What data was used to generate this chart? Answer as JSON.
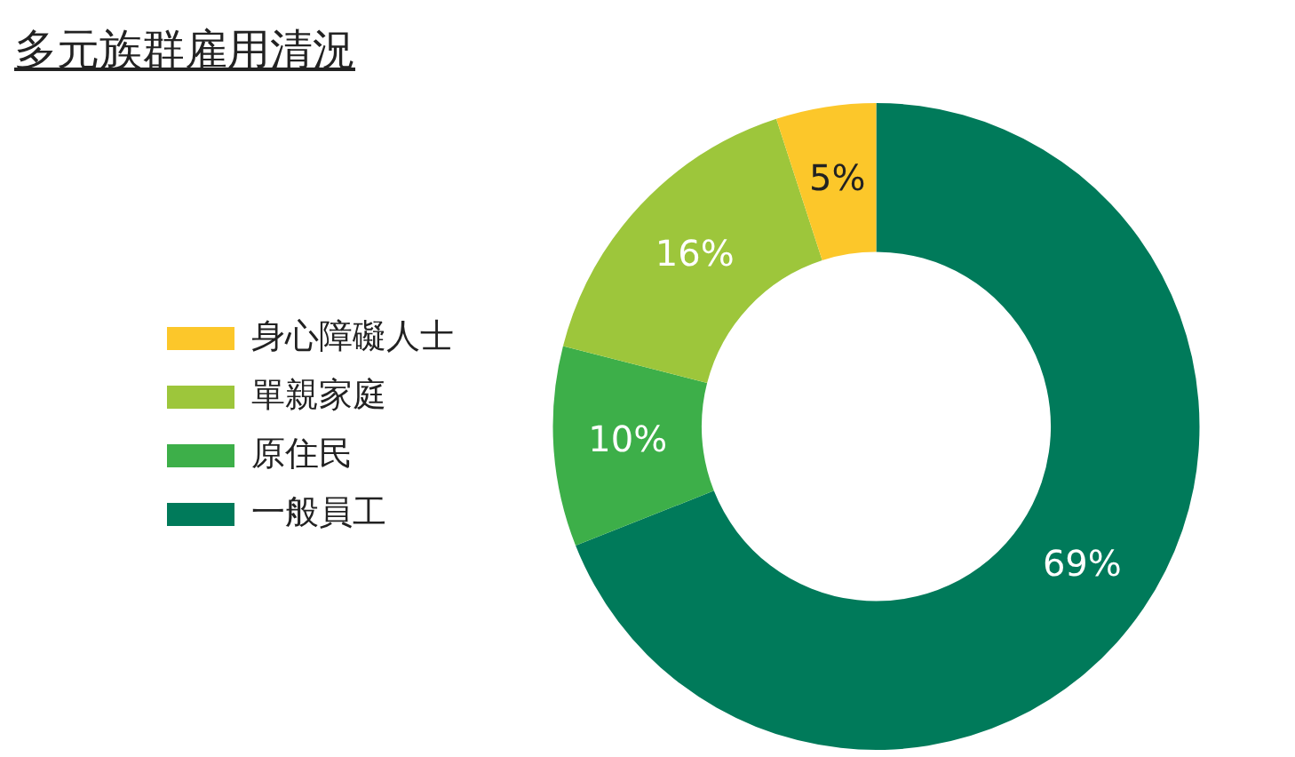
{
  "chart_data": {
    "type": "donut",
    "title": "多元族群雇用清況",
    "categories": [
      "一般員工",
      "原住民",
      "單親家庭",
      "身心障礙人士"
    ],
    "values": [
      69,
      10,
      16,
      5
    ],
    "colors": [
      "#007a5a",
      "#3daf49",
      "#9dc63b",
      "#fcc72a"
    ],
    "value_labels": [
      "69%",
      "10%",
      "16%",
      "5%"
    ],
    "legend": "left"
  }
}
